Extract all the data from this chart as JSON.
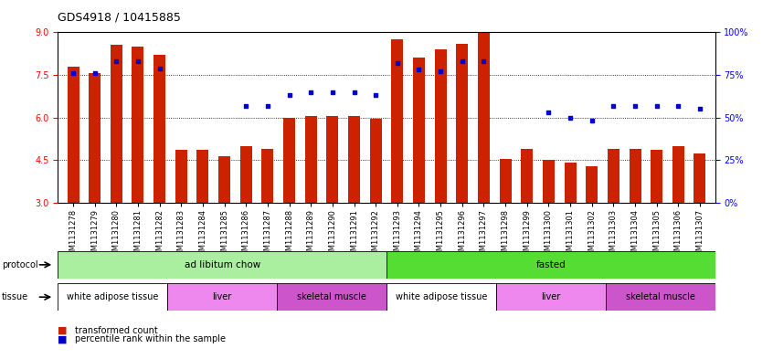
{
  "title": "GDS4918 / 10415885",
  "samples": [
    "GSM1131278",
    "GSM1131279",
    "GSM1131280",
    "GSM1131281",
    "GSM1131282",
    "GSM1131283",
    "GSM1131284",
    "GSM1131285",
    "GSM1131286",
    "GSM1131287",
    "GSM1131288",
    "GSM1131289",
    "GSM1131290",
    "GSM1131291",
    "GSM1131292",
    "GSM1131293",
    "GSM1131294",
    "GSM1131295",
    "GSM1131296",
    "GSM1131297",
    "GSM1131298",
    "GSM1131299",
    "GSM1131300",
    "GSM1131301",
    "GSM1131302",
    "GSM1131303",
    "GSM1131304",
    "GSM1131305",
    "GSM1131306",
    "GSM1131307"
  ],
  "bar_values": [
    7.8,
    7.55,
    8.55,
    8.5,
    8.2,
    4.85,
    4.85,
    4.65,
    5.0,
    4.9,
    6.0,
    6.05,
    6.05,
    6.05,
    5.95,
    8.75,
    8.1,
    8.4,
    8.6,
    9.0,
    4.55,
    4.9,
    4.5,
    4.4,
    4.3,
    4.9,
    4.9,
    4.85,
    5.0,
    4.75
  ],
  "dot_values_percentile": [
    76,
    76,
    83,
    83,
    79,
    null,
    null,
    null,
    57,
    57,
    63,
    65,
    65,
    65,
    63,
    82,
    78,
    77,
    83,
    83,
    null,
    null,
    53,
    50,
    48,
    57,
    57,
    57,
    57,
    55
  ],
  "ylim_left": [
    3,
    9
  ],
  "ylim_right": [
    0,
    100
  ],
  "yticks_left": [
    3,
    4.5,
    6,
    7.5,
    9
  ],
  "yticks_right": [
    0,
    25,
    50,
    75,
    100
  ],
  "bar_color": "#cc2200",
  "dot_color": "#0000cc",
  "protocol_groups": [
    {
      "label": "ad libitum chow",
      "start": 0,
      "end": 15,
      "color": "#aaeea0"
    },
    {
      "label": "fasted",
      "start": 15,
      "end": 30,
      "color": "#55dd33"
    }
  ],
  "tissue_groups": [
    {
      "label": "white adipose tissue",
      "start": 0,
      "end": 5,
      "color": "#ffffff"
    },
    {
      "label": "liver",
      "start": 5,
      "end": 10,
      "color": "#ee88ee"
    },
    {
      "label": "skeletal muscle",
      "start": 10,
      "end": 15,
      "color": "#cc55cc"
    },
    {
      "label": "white adipose tissue",
      "start": 15,
      "end": 20,
      "color": "#ffffff"
    },
    {
      "label": "liver",
      "start": 20,
      "end": 25,
      "color": "#ee88ee"
    },
    {
      "label": "skeletal muscle",
      "start": 25,
      "end": 30,
      "color": "#cc55cc"
    }
  ],
  "legend_items": [
    {
      "label": "transformed count",
      "color": "#cc2200"
    },
    {
      "label": "percentile rank within the sample",
      "color": "#0000cc"
    }
  ],
  "bg_color": "#ffffff",
  "plot_bg": "#ffffff",
  "title_fontsize": 9,
  "tick_label_fontsize": 6,
  "bar_width": 0.55
}
